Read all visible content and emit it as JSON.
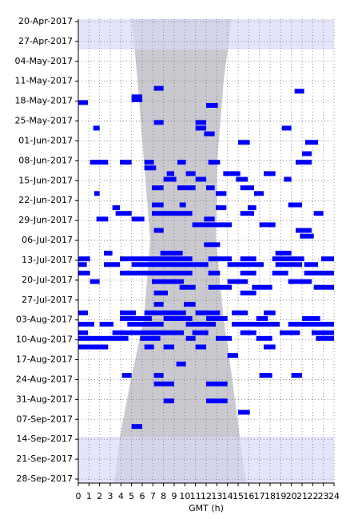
{
  "chart_data": {
    "type": "timeline",
    "xlabel": "GMT (h)",
    "xlim": [
      0,
      24
    ],
    "xticks": [
      0,
      1,
      2,
      3,
      4,
      5,
      6,
      7,
      8,
      9,
      10,
      11,
      12,
      13,
      14,
      15,
      16,
      17,
      18,
      19,
      20,
      21,
      22,
      23,
      24
    ],
    "ylim": [
      "2017-04-20",
      "2017-09-28"
    ],
    "yticks": [
      {
        "value": "2017-04-20",
        "label": "20-Apr-2017"
      },
      {
        "value": "2017-04-27",
        "label": "27-Apr-2017"
      },
      {
        "value": "2017-05-04",
        "label": "04-May-2017"
      },
      {
        "value": "2017-05-11",
        "label": "11-May-2017"
      },
      {
        "value": "2017-05-18",
        "label": "18-May-2017"
      },
      {
        "value": "2017-05-25",
        "label": "25-May-2017"
      },
      {
        "value": "2017-06-01",
        "label": "01-Jun-2017"
      },
      {
        "value": "2017-06-08",
        "label": "08-Jun-2017"
      },
      {
        "value": "2017-06-15",
        "label": "15-Jun-2017"
      },
      {
        "value": "2017-06-22",
        "label": "22-Jun-2017"
      },
      {
        "value": "2017-06-29",
        "label": "29-Jun-2017"
      },
      {
        "value": "2017-07-06",
        "label": "06-Jul-2017"
      },
      {
        "value": "2017-07-13",
        "label": "13-Jul-2017"
      },
      {
        "value": "2017-07-20",
        "label": "20-Jul-2017"
      },
      {
        "value": "2017-07-27",
        "label": "27-Jul-2017"
      },
      {
        "value": "2017-08-03",
        "label": "03-Aug-2017"
      },
      {
        "value": "2017-08-10",
        "label": "10-Aug-2017"
      },
      {
        "value": "2017-08-17",
        "label": "17-Aug-2017"
      },
      {
        "value": "2017-08-24",
        "label": "24-Aug-2017"
      },
      {
        "value": "2017-08-31",
        "label": "31-Aug-2017"
      },
      {
        "value": "2017-09-07",
        "label": "07-Sep-2017"
      },
      {
        "value": "2017-09-14",
        "label": "14-Sep-2017"
      },
      {
        "value": "2017-09-21",
        "label": "21-Sep-2017"
      },
      {
        "value": "2017-09-28",
        "label": "28-Sep-2017"
      }
    ],
    "grid": true,
    "color": "#0000ff",
    "events": {
      "date": [
        "2017-05-13",
        "2017-05-14",
        "2017-05-16",
        "2017-05-17",
        "2017-05-18",
        "2017-05-19",
        "2017-05-25",
        "2017-05-25",
        "2017-05-27",
        "2017-05-27",
        "2017-05-27",
        "2017-05-29",
        "2017-06-01",
        "2017-06-01",
        "2017-06-05",
        "2017-06-08",
        "2017-06-08",
        "2017-06-08",
        "2017-06-08",
        "2017-06-08",
        "2017-06-08",
        "2017-06-10",
        "2017-06-12",
        "2017-06-12",
        "2017-06-12",
        "2017-06-12",
        "2017-06-14",
        "2017-06-14",
        "2017-06-14",
        "2017-06-14",
        "2017-06-17",
        "2017-06-17",
        "2017-06-17",
        "2017-06-17",
        "2017-06-19",
        "2017-06-19",
        "2017-06-19",
        "2017-06-23",
        "2017-06-23",
        "2017-06-23",
        "2017-06-24",
        "2017-06-24",
        "2017-06-24",
        "2017-06-26",
        "2017-06-26",
        "2017-06-26",
        "2017-06-26",
        "2017-06-28",
        "2017-06-28",
        "2017-06-28",
        "2017-06-30",
        "2017-06-30",
        "2017-07-02",
        "2017-07-02",
        "2017-07-04",
        "2017-07-07",
        "2017-07-10",
        "2017-07-10",
        "2017-07-10",
        "2017-07-12",
        "2017-07-12",
        "2017-07-12",
        "2017-07-12",
        "2017-07-12",
        "2017-07-12",
        "2017-07-14",
        "2017-07-14",
        "2017-07-14",
        "2017-07-14",
        "2017-07-14",
        "2017-07-14",
        "2017-07-17",
        "2017-07-17",
        "2017-07-17",
        "2017-07-17",
        "2017-07-17",
        "2017-07-17",
        "2017-07-20",
        "2017-07-20",
        "2017-07-20",
        "2017-07-20",
        "2017-07-22",
        "2017-07-22",
        "2017-07-22",
        "2017-07-22",
        "2017-07-24",
        "2017-07-24",
        "2017-07-28",
        "2017-07-28",
        "2017-07-31",
        "2017-07-31",
        "2017-07-31",
        "2017-07-31",
        "2017-07-31",
        "2017-07-31",
        "2017-08-02",
        "2017-08-02",
        "2017-08-02",
        "2017-08-02",
        "2017-08-02",
        "2017-08-04",
        "2017-08-04",
        "2017-08-04",
        "2017-08-04",
        "2017-08-04",
        "2017-08-04",
        "2017-08-07",
        "2017-08-07",
        "2017-08-07",
        "2017-08-07",
        "2017-08-07",
        "2017-08-07",
        "2017-08-09",
        "2017-08-09",
        "2017-08-09",
        "2017-08-09",
        "2017-08-09",
        "2017-08-09",
        "2017-08-12",
        "2017-08-12",
        "2017-08-12",
        "2017-08-12",
        "2017-08-12",
        "2017-08-15",
        "2017-08-18",
        "2017-08-22",
        "2017-08-22",
        "2017-08-22",
        "2017-08-22",
        "2017-08-25",
        "2017-08-25",
        "2017-08-31",
        "2017-08-31",
        "2017-09-04",
        "2017-09-09"
      ],
      "start": [
        7.1,
        20.3,
        5.0,
        5.0,
        0,
        12.0,
        7.1,
        11.0,
        1.4,
        11.0,
        19.1,
        11.8,
        15.0,
        21.3,
        21.0,
        1.1,
        3.9,
        6.2,
        9.3,
        12.2,
        20.4,
        6.2,
        8.3,
        10.1,
        13.6,
        17.4,
        8.0,
        11.0,
        14.8,
        19.3,
        6.9,
        9.3,
        12.0,
        15.2,
        1.5,
        12.9,
        16.5,
        6.9,
        9.5,
        19.7,
        3.2,
        12.9,
        15.9,
        3.5,
        6.9,
        15.2,
        22.1,
        1.7,
        5.0,
        11.8,
        10.7,
        17.0,
        7.1,
        20.4,
        20.8,
        11.8,
        2.4,
        7.7,
        18.5,
        0,
        3.9,
        12.2,
        15.2,
        18.2,
        22.8,
        0,
        2.4,
        5.0,
        14.0,
        18.5,
        21.2,
        0,
        3.9,
        12.2,
        15.2,
        18.2,
        21.2,
        1.1,
        6.9,
        14.0,
        19.7,
        9.5,
        12.2,
        16.3,
        22.1,
        7.1,
        15.2,
        7.1,
        9.9,
        0,
        3.9,
        6.2,
        11.0,
        14.4,
        17.4,
        3.9,
        8.0,
        12.0,
        16.7,
        21.0,
        0,
        2.0,
        4.6,
        10.1,
        14.4,
        19.7,
        0,
        3.2,
        10.7,
        15.2,
        18.9,
        21.9,
        0,
        5.8,
        10.1,
        12.9,
        16.7,
        22.3,
        0,
        6.2,
        8.0,
        11.0,
        17.4,
        14.0,
        9.2,
        4.1,
        7.1,
        17.0,
        20.0,
        7.1,
        12.0,
        8.0,
        12.0,
        15.0,
        5.0
      ],
      "end": [
        8.0,
        21.2,
        6.0,
        6.0,
        0.9,
        13.1,
        8.0,
        12.0,
        2.0,
        12.0,
        20.0,
        12.8,
        16.1,
        22.5,
        21.9,
        2.8,
        5.0,
        7.1,
        10.1,
        13.3,
        21.9,
        7.3,
        9.0,
        11.0,
        15.2,
        18.5,
        9.2,
        12.0,
        15.9,
        20.0,
        8.0,
        11.0,
        12.8,
        16.5,
        2.0,
        13.9,
        17.4,
        8.0,
        10.1,
        21.0,
        3.9,
        13.9,
        16.7,
        5.0,
        10.7,
        16.5,
        23.0,
        2.8,
        6.2,
        12.8,
        14.4,
        18.5,
        8.0,
        21.9,
        22.1,
        13.3,
        3.2,
        9.8,
        20.0,
        1.1,
        10.7,
        14.4,
        16.7,
        21.2,
        24,
        0.8,
        3.9,
        12.2,
        17.4,
        21.0,
        22.5,
        1.1,
        10.7,
        13.3,
        16.7,
        19.7,
        24,
        2.0,
        9.9,
        15.9,
        21.9,
        11.0,
        14.4,
        18.2,
        24,
        8.4,
        16.7,
        8.0,
        11.0,
        0.9,
        5.4,
        10.1,
        13.3,
        15.9,
        18.5,
        6.9,
        10.7,
        14.0,
        17.8,
        22.7,
        1.5,
        3.3,
        8.0,
        12.9,
        18.9,
        24,
        0.9,
        9.9,
        12.2,
        16.7,
        20.8,
        24,
        4.7,
        7.7,
        11.0,
        14.4,
        18.2,
        24,
        2.8,
        7.1,
        9.0,
        12.0,
        18.5,
        15.0,
        10.1,
        5.0,
        8.0,
        18.2,
        21.0,
        9.0,
        14.0,
        9.0,
        14.0,
        16.1,
        6.0
      ]
    }
  }
}
